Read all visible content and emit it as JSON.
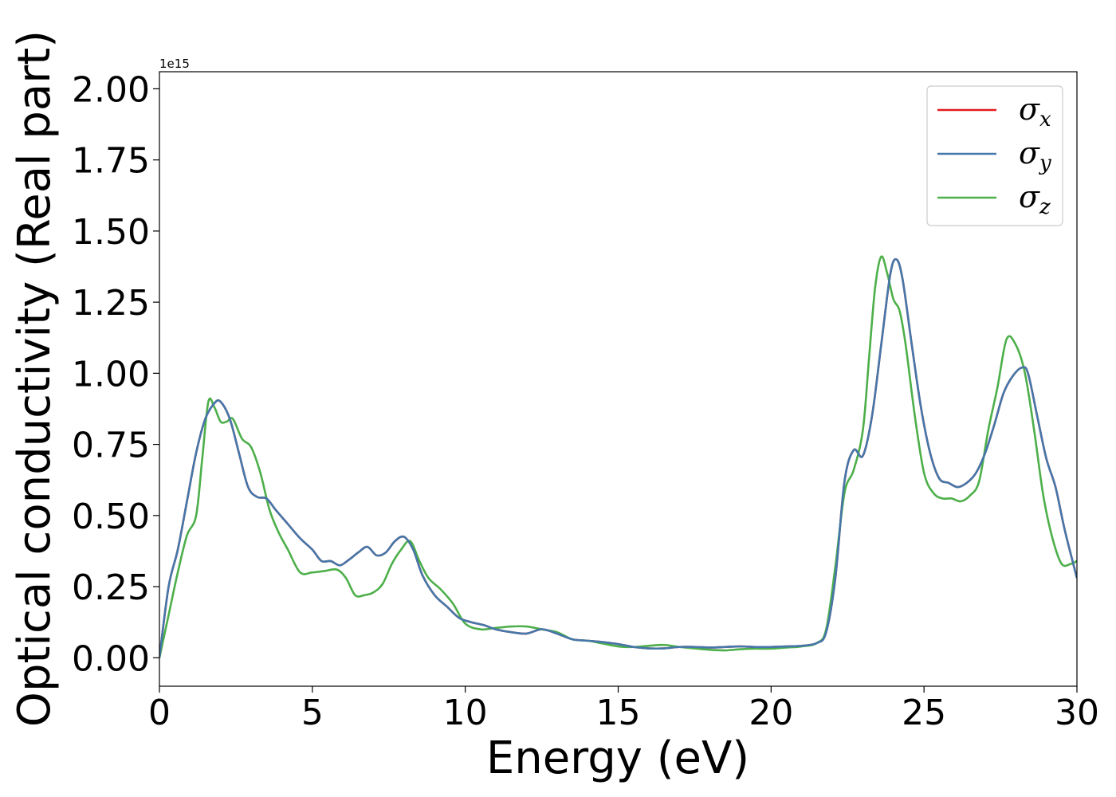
{
  "chart_data": {
    "type": "line",
    "xlabel": "Energy (eV)",
    "ylabel": "Optical conductivity (Real part)",
    "y_offset_label": "1e15",
    "y_scale": 1000000000000000.0,
    "xlim": [
      0,
      30
    ],
    "ylim": [
      -0.1,
      2.06
    ],
    "x_ticks": [
      0,
      5,
      10,
      15,
      20,
      25,
      30
    ],
    "x_tick_labels": [
      "0",
      "5",
      "10",
      "15",
      "20",
      "25",
      "30"
    ],
    "y_ticks": [
      0,
      0.25,
      0.5,
      0.75,
      1.0,
      1.25,
      1.5,
      1.75,
      2.0
    ],
    "y_tick_labels": [
      "0.00",
      "0.25",
      "0.50",
      "0.75",
      "1.00",
      "1.25",
      "1.50",
      "1.75",
      "2.00"
    ],
    "grid": false,
    "legend_position": "top-right",
    "series": [
      {
        "name": "σx",
        "symbol": "σ",
        "subscript": "x",
        "color": "#e41a1c",
        "x": [
          0,
          0.3,
          0.6,
          0.9,
          1.2,
          1.5,
          1.8,
          2.0,
          2.3,
          2.6,
          2.9,
          3.2,
          3.5,
          3.8,
          4.2,
          4.6,
          5.0,
          5.3,
          5.6,
          5.9,
          6.2,
          6.5,
          6.8,
          7.1,
          7.4,
          7.7,
          8.0,
          8.3,
          8.6,
          9.0,
          9.4,
          9.8,
          10.2,
          10.6,
          11.0,
          11.5,
          12.0,
          12.5,
          13.0,
          13.5,
          14.0,
          14.5,
          15.0,
          15.5,
          16.0,
          16.5,
          17.0,
          17.5,
          18.0,
          18.5,
          19.0,
          19.5,
          20.0,
          20.5,
          21.0,
          21.5,
          21.8,
          22.1,
          22.4,
          22.7,
          23.0,
          23.3,
          23.6,
          23.9,
          24.1,
          24.3,
          24.6,
          24.9,
          25.2,
          25.5,
          25.8,
          26.1,
          26.4,
          26.7,
          27.0,
          27.3,
          27.6,
          27.9,
          28.2,
          28.4,
          28.7,
          29.0,
          29.3,
          29.6,
          30.0
        ],
        "values": [
          0,
          0.25,
          0.38,
          0.55,
          0.72,
          0.84,
          0.895,
          0.9,
          0.84,
          0.72,
          0.6,
          0.565,
          0.56,
          0.52,
          0.47,
          0.42,
          0.38,
          0.34,
          0.34,
          0.325,
          0.345,
          0.37,
          0.39,
          0.36,
          0.37,
          0.41,
          0.425,
          0.38,
          0.29,
          0.22,
          0.18,
          0.14,
          0.125,
          0.115,
          0.1,
          0.09,
          0.085,
          0.1,
          0.085,
          0.065,
          0.06,
          0.055,
          0.048,
          0.038,
          0.033,
          0.033,
          0.038,
          0.038,
          0.036,
          0.038,
          0.04,
          0.038,
          0.038,
          0.04,
          0.042,
          0.052,
          0.09,
          0.28,
          0.62,
          0.73,
          0.71,
          0.85,
          1.1,
          1.35,
          1.4,
          1.33,
          1.1,
          0.88,
          0.72,
          0.63,
          0.615,
          0.6,
          0.615,
          0.65,
          0.72,
          0.82,
          0.93,
          0.99,
          1.02,
          1.0,
          0.85,
          0.7,
          0.6,
          0.45,
          0.28
        ]
      },
      {
        "name": "σy",
        "symbol": "σ",
        "subscript": "y",
        "color": "#4477aa",
        "x": [
          0,
          0.3,
          0.6,
          0.9,
          1.2,
          1.5,
          1.8,
          2.0,
          2.3,
          2.6,
          2.9,
          3.2,
          3.5,
          3.8,
          4.2,
          4.6,
          5.0,
          5.3,
          5.6,
          5.9,
          6.2,
          6.5,
          6.8,
          7.1,
          7.4,
          7.7,
          8.0,
          8.3,
          8.6,
          9.0,
          9.4,
          9.8,
          10.2,
          10.6,
          11.0,
          11.5,
          12.0,
          12.5,
          13.0,
          13.5,
          14.0,
          14.5,
          15.0,
          15.5,
          16.0,
          16.5,
          17.0,
          17.5,
          18.0,
          18.5,
          19.0,
          19.5,
          20.0,
          20.5,
          21.0,
          21.5,
          21.8,
          22.1,
          22.4,
          22.7,
          23.0,
          23.3,
          23.6,
          23.9,
          24.1,
          24.3,
          24.6,
          24.9,
          25.2,
          25.5,
          25.8,
          26.1,
          26.4,
          26.7,
          27.0,
          27.3,
          27.6,
          27.9,
          28.2,
          28.4,
          28.7,
          29.0,
          29.3,
          29.6,
          30.0
        ],
        "values": [
          0,
          0.25,
          0.38,
          0.55,
          0.72,
          0.84,
          0.895,
          0.9,
          0.84,
          0.72,
          0.6,
          0.565,
          0.56,
          0.52,
          0.47,
          0.42,
          0.38,
          0.34,
          0.34,
          0.325,
          0.345,
          0.37,
          0.39,
          0.36,
          0.37,
          0.41,
          0.425,
          0.38,
          0.29,
          0.22,
          0.18,
          0.14,
          0.125,
          0.115,
          0.1,
          0.09,
          0.085,
          0.1,
          0.085,
          0.065,
          0.06,
          0.055,
          0.048,
          0.038,
          0.033,
          0.033,
          0.038,
          0.038,
          0.036,
          0.038,
          0.04,
          0.038,
          0.038,
          0.04,
          0.042,
          0.052,
          0.09,
          0.28,
          0.62,
          0.73,
          0.71,
          0.85,
          1.1,
          1.35,
          1.4,
          1.33,
          1.1,
          0.88,
          0.72,
          0.63,
          0.615,
          0.6,
          0.615,
          0.65,
          0.72,
          0.82,
          0.93,
          0.99,
          1.02,
          1.0,
          0.85,
          0.7,
          0.6,
          0.45,
          0.28
        ]
      },
      {
        "name": "σz",
        "symbol": "σ",
        "subscript": "z",
        "color": "#4daf4a",
        "x": [
          0,
          0.3,
          0.6,
          0.9,
          1.2,
          1.4,
          1.6,
          1.8,
          2.0,
          2.2,
          2.4,
          2.7,
          3.0,
          3.3,
          3.6,
          3.9,
          4.2,
          4.6,
          5.0,
          5.4,
          5.8,
          6.1,
          6.4,
          6.7,
          7.0,
          7.3,
          7.6,
          7.9,
          8.2,
          8.5,
          8.8,
          9.2,
          9.6,
          10.0,
          10.5,
          11.0,
          11.5,
          12.0,
          12.5,
          13.0,
          13.5,
          14.0,
          14.5,
          15.0,
          15.5,
          16.0,
          16.5,
          17.0,
          17.5,
          18.0,
          18.5,
          19.0,
          19.5,
          20.0,
          20.5,
          21.0,
          21.5,
          21.8,
          22.1,
          22.4,
          22.7,
          23.0,
          23.2,
          23.4,
          23.6,
          23.8,
          24.0,
          24.2,
          24.4,
          24.7,
          25.0,
          25.3,
          25.6,
          25.9,
          26.2,
          26.5,
          26.8,
          27.1,
          27.4,
          27.7,
          28.0,
          28.3,
          28.6,
          28.9,
          29.2,
          29.5,
          29.8,
          30.0
        ],
        "values": [
          0,
          0.15,
          0.3,
          0.43,
          0.5,
          0.7,
          0.9,
          0.88,
          0.83,
          0.83,
          0.84,
          0.77,
          0.74,
          0.65,
          0.52,
          0.44,
          0.38,
          0.3,
          0.3,
          0.305,
          0.31,
          0.28,
          0.22,
          0.22,
          0.23,
          0.26,
          0.33,
          0.38,
          0.41,
          0.34,
          0.28,
          0.24,
          0.19,
          0.12,
          0.1,
          0.105,
          0.11,
          0.11,
          0.1,
          0.09,
          0.065,
          0.06,
          0.05,
          0.04,
          0.038,
          0.042,
          0.045,
          0.038,
          0.033,
          0.028,
          0.026,
          0.03,
          0.032,
          0.032,
          0.036,
          0.04,
          0.052,
          0.1,
          0.32,
          0.58,
          0.66,
          0.8,
          1.05,
          1.3,
          1.41,
          1.35,
          1.26,
          1.22,
          1.1,
          0.85,
          0.65,
          0.58,
          0.56,
          0.56,
          0.55,
          0.57,
          0.62,
          0.8,
          0.95,
          1.12,
          1.1,
          1.0,
          0.8,
          0.57,
          0.42,
          0.33,
          0.33,
          0.34
        ]
      }
    ]
  }
}
